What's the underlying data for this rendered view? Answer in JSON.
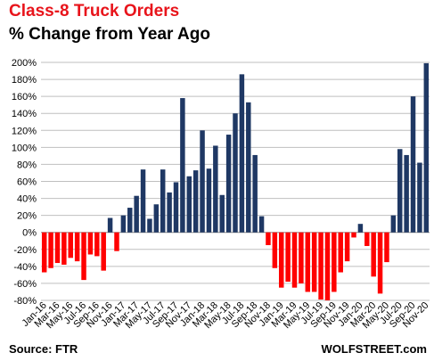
{
  "header": {
    "title": "Class-8 Truck Orders",
    "subtitle": "% Change from Year Ago"
  },
  "footer": {
    "source": "Source: FTR",
    "credit": "WOLFSTREET.com"
  },
  "colors": {
    "positive": "#1f3864",
    "negative": "#ff0000",
    "title": "#e8141b"
  },
  "chart_data": {
    "type": "bar",
    "title": "Class-8 Truck Orders",
    "subtitle": "% Change from Year Ago",
    "ylim": [
      -80,
      200
    ],
    "yticks": [
      -80,
      -60,
      -40,
      -20,
      0,
      20,
      40,
      60,
      80,
      100,
      120,
      140,
      160,
      180,
      200
    ],
    "ytick_labels": [
      "-80%",
      "-60%",
      "-40%",
      "-20%",
      "0%",
      "20%",
      "40%",
      "60%",
      "80%",
      "100%",
      "120%",
      "140%",
      "160%",
      "180%",
      "200%"
    ],
    "grid": true,
    "categories": [
      "Jan-16",
      "Feb-16",
      "Mar-16",
      "Apr-16",
      "May-16",
      "Jun-16",
      "Jul-16",
      "Aug-16",
      "Sep-16",
      "Oct-16",
      "Nov-16",
      "Dec-16",
      "Jan-17",
      "Feb-17",
      "Mar-17",
      "Apr-17",
      "May-17",
      "Jun-17",
      "Jul-17",
      "Aug-17",
      "Sep-17",
      "Oct-17",
      "Nov-17",
      "Dec-17",
      "Jan-18",
      "Feb-18",
      "Mar-18",
      "Apr-18",
      "May-18",
      "Jun-18",
      "Jul-18",
      "Aug-18",
      "Sep-18",
      "Oct-18",
      "Nov-18",
      "Dec-18",
      "Jan-19",
      "Feb-19",
      "Mar-19",
      "Apr-19",
      "May-19",
      "Jun-19",
      "Jul-19",
      "Aug-19",
      "Sep-19",
      "Oct-19",
      "Nov-19",
      "Dec-19",
      "Jan-20",
      "Feb-20",
      "Mar-20",
      "Apr-20",
      "May-20",
      "Jun-20",
      "Jul-20",
      "Aug-20",
      "Sep-20",
      "Oct-20",
      "Nov-20"
    ],
    "x_tick_labels": [
      "Jan-16",
      "Mar-16",
      "May-16",
      "Jul-16",
      "Sep-16",
      "Nov-16",
      "Jan-17",
      "Mar-17",
      "May-17",
      "Jul-17",
      "Sep-17",
      "Nov-17",
      "Jan-18",
      "Mar-18",
      "May-18",
      "Jul-18",
      "Sep-18",
      "Nov-18",
      "Jan-19",
      "Mar-19",
      "May-19",
      "Jul-19",
      "Sep-19",
      "Nov-19",
      "Jan-20",
      "Mar-20",
      "May-20",
      "Jul-20",
      "Sep-20",
      "Nov-20"
    ],
    "values": [
      -47,
      -42,
      -36,
      -38,
      -30,
      -34,
      -56,
      -26,
      -28,
      -45,
      17,
      -22,
      20,
      29,
      43,
      74,
      16,
      33,
      74,
      47,
      59,
      158,
      66,
      73,
      120,
      75,
      102,
      44,
      115,
      140,
      186,
      153,
      91,
      19,
      -15,
      -42,
      -65,
      -58,
      -65,
      -60,
      -70,
      -70,
      -79,
      -80,
      -70,
      -47,
      -34,
      -6,
      10,
      -16,
      -52,
      -72,
      -35,
      20,
      98,
      91,
      160,
      82,
      199
    ]
  }
}
